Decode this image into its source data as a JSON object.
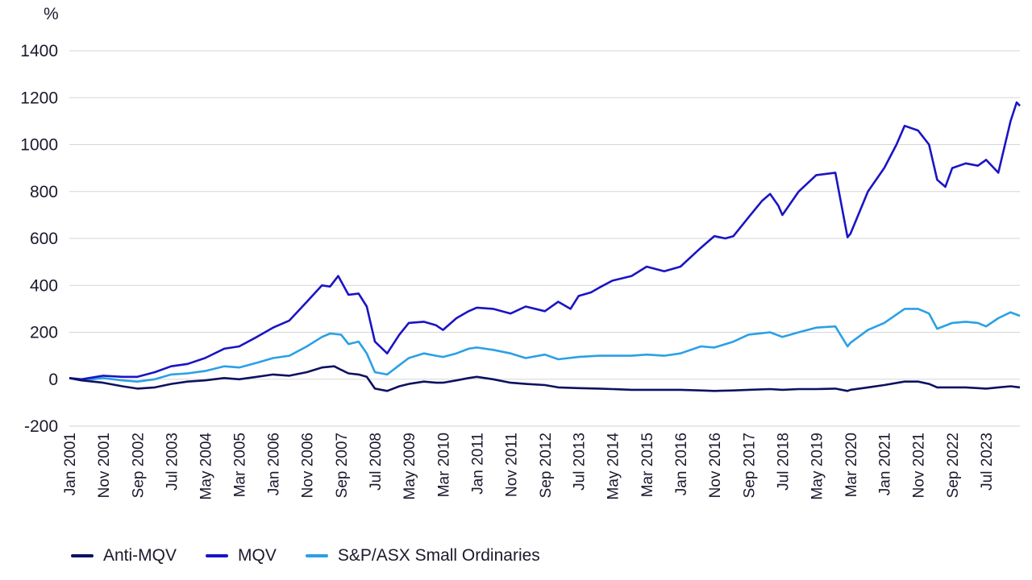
{
  "chart_data": {
    "type": "line",
    "unit_label": "%",
    "ylim": [
      -200,
      1400
    ],
    "yticks": [
      -200,
      0,
      200,
      400,
      600,
      800,
      1000,
      1200,
      1400
    ],
    "grid": true,
    "legend_position": "bottom-left",
    "x_tick_labels": [
      "Jan 2001",
      "Nov 2001",
      "Sep 2002",
      "Jul 2003",
      "May 2004",
      "Mar 2005",
      "Jan 2006",
      "Nov 2006",
      "Sep 2007",
      "Jul 2008",
      "May 2009",
      "Mar 2010",
      "Jan 2011",
      "Nov 2011",
      "Sep 2012",
      "Jul 2013",
      "May 2014",
      "Mar 2015",
      "Jan 2016",
      "Nov 2016",
      "Sep 2017",
      "Jul 2018",
      "May 2019",
      "Mar 2020",
      "Jan 2021",
      "Nov 2021",
      "Sep 2022",
      "Jul 2023"
    ],
    "x_tick_years": [
      2001.0,
      2001.83,
      2002.67,
      2003.5,
      2004.33,
      2005.17,
      2006.0,
      2006.83,
      2007.67,
      2008.5,
      2009.33,
      2010.17,
      2011.0,
      2011.83,
      2012.67,
      2013.5,
      2014.33,
      2015.17,
      2016.0,
      2016.83,
      2017.67,
      2018.5,
      2019.33,
      2020.17,
      2021.0,
      2021.83,
      2022.67,
      2023.5
    ],
    "xlim": [
      2001.0,
      2024.33
    ],
    "series": [
      {
        "name": "S&P/ASX Small Ordinaries",
        "color": "#2aa0e6",
        "points": [
          [
            2001.0,
            5
          ],
          [
            2001.3,
            -5
          ],
          [
            2001.83,
            5
          ],
          [
            2002.3,
            -5
          ],
          [
            2002.67,
            -10
          ],
          [
            2003.1,
            0
          ],
          [
            2003.5,
            20
          ],
          [
            2003.9,
            25
          ],
          [
            2004.33,
            35
          ],
          [
            2004.8,
            55
          ],
          [
            2005.17,
            50
          ],
          [
            2005.6,
            70
          ],
          [
            2006.0,
            90
          ],
          [
            2006.4,
            100
          ],
          [
            2006.83,
            140
          ],
          [
            2007.2,
            180
          ],
          [
            2007.4,
            195
          ],
          [
            2007.67,
            190
          ],
          [
            2007.85,
            150
          ],
          [
            2008.1,
            160
          ],
          [
            2008.3,
            110
          ],
          [
            2008.5,
            30
          ],
          [
            2008.8,
            20
          ],
          [
            2009.1,
            60
          ],
          [
            2009.33,
            90
          ],
          [
            2009.7,
            110
          ],
          [
            2010.0,
            100
          ],
          [
            2010.17,
            95
          ],
          [
            2010.5,
            110
          ],
          [
            2010.8,
            130
          ],
          [
            2011.0,
            135
          ],
          [
            2011.4,
            125
          ],
          [
            2011.83,
            110
          ],
          [
            2012.2,
            90
          ],
          [
            2012.67,
            105
          ],
          [
            2013.0,
            85
          ],
          [
            2013.5,
            95
          ],
          [
            2014.0,
            100
          ],
          [
            2014.33,
            100
          ],
          [
            2014.8,
            100
          ],
          [
            2015.17,
            105
          ],
          [
            2015.6,
            100
          ],
          [
            2016.0,
            110
          ],
          [
            2016.5,
            140
          ],
          [
            2016.83,
            135
          ],
          [
            2017.3,
            160
          ],
          [
            2017.67,
            190
          ],
          [
            2018.2,
            200
          ],
          [
            2018.5,
            180
          ],
          [
            2018.9,
            200
          ],
          [
            2019.33,
            220
          ],
          [
            2019.8,
            225
          ],
          [
            2020.1,
            140
          ],
          [
            2020.17,
            155
          ],
          [
            2020.6,
            210
          ],
          [
            2021.0,
            240
          ],
          [
            2021.5,
            300
          ],
          [
            2021.83,
            300
          ],
          [
            2022.1,
            280
          ],
          [
            2022.3,
            215
          ],
          [
            2022.67,
            240
          ],
          [
            2023.0,
            245
          ],
          [
            2023.3,
            240
          ],
          [
            2023.5,
            225
          ],
          [
            2023.8,
            260
          ],
          [
            2024.1,
            285
          ],
          [
            2024.33,
            270
          ]
        ]
      },
      {
        "name": "MQV",
        "color": "#1a14c4",
        "points": [
          [
            2001.0,
            5
          ],
          [
            2001.3,
            0
          ],
          [
            2001.83,
            15
          ],
          [
            2002.3,
            10
          ],
          [
            2002.67,
            10
          ],
          [
            2003.1,
            30
          ],
          [
            2003.5,
            55
          ],
          [
            2003.9,
            65
          ],
          [
            2004.33,
            90
          ],
          [
            2004.8,
            130
          ],
          [
            2005.17,
            140
          ],
          [
            2005.6,
            180
          ],
          [
            2006.0,
            220
          ],
          [
            2006.4,
            250
          ],
          [
            2006.83,
            330
          ],
          [
            2007.2,
            400
          ],
          [
            2007.4,
            395
          ],
          [
            2007.6,
            440
          ],
          [
            2007.85,
            360
          ],
          [
            2008.1,
            365
          ],
          [
            2008.3,
            310
          ],
          [
            2008.5,
            160
          ],
          [
            2008.8,
            110
          ],
          [
            2009.1,
            190
          ],
          [
            2009.33,
            240
          ],
          [
            2009.7,
            245
          ],
          [
            2010.0,
            230
          ],
          [
            2010.17,
            210
          ],
          [
            2010.5,
            260
          ],
          [
            2010.8,
            290
          ],
          [
            2011.0,
            305
          ],
          [
            2011.4,
            300
          ],
          [
            2011.83,
            280
          ],
          [
            2012.2,
            310
          ],
          [
            2012.67,
            290
          ],
          [
            2013.0,
            330
          ],
          [
            2013.3,
            300
          ],
          [
            2013.5,
            355
          ],
          [
            2013.8,
            370
          ],
          [
            2014.0,
            390
          ],
          [
            2014.33,
            420
          ],
          [
            2014.8,
            440
          ],
          [
            2015.17,
            480
          ],
          [
            2015.6,
            460
          ],
          [
            2016.0,
            480
          ],
          [
            2016.5,
            560
          ],
          [
            2016.83,
            610
          ],
          [
            2017.1,
            600
          ],
          [
            2017.3,
            610
          ],
          [
            2017.67,
            690
          ],
          [
            2018.0,
            760
          ],
          [
            2018.2,
            790
          ],
          [
            2018.4,
            740
          ],
          [
            2018.5,
            700
          ],
          [
            2018.9,
            800
          ],
          [
            2019.33,
            870
          ],
          [
            2019.8,
            880
          ],
          [
            2020.1,
            605
          ],
          [
            2020.17,
            620
          ],
          [
            2020.6,
            800
          ],
          [
            2021.0,
            900
          ],
          [
            2021.3,
            1000
          ],
          [
            2021.5,
            1080
          ],
          [
            2021.83,
            1060
          ],
          [
            2022.1,
            1000
          ],
          [
            2022.3,
            850
          ],
          [
            2022.5,
            820
          ],
          [
            2022.67,
            900
          ],
          [
            2023.0,
            920
          ],
          [
            2023.3,
            910
          ],
          [
            2023.5,
            935
          ],
          [
            2023.8,
            880
          ],
          [
            2024.1,
            1100
          ],
          [
            2024.25,
            1180
          ],
          [
            2024.33,
            1165
          ]
        ]
      },
      {
        "name": "Anti-MQV",
        "color": "#0d1160",
        "points": [
          [
            2001.0,
            5
          ],
          [
            2001.3,
            -5
          ],
          [
            2001.83,
            -15
          ],
          [
            2002.3,
            -30
          ],
          [
            2002.67,
            -40
          ],
          [
            2003.1,
            -35
          ],
          [
            2003.5,
            -20
          ],
          [
            2003.9,
            -10
          ],
          [
            2004.33,
            -5
          ],
          [
            2004.8,
            5
          ],
          [
            2005.17,
            0
          ],
          [
            2005.6,
            10
          ],
          [
            2006.0,
            20
          ],
          [
            2006.4,
            15
          ],
          [
            2006.83,
            30
          ],
          [
            2007.2,
            50
          ],
          [
            2007.5,
            55
          ],
          [
            2007.67,
            40
          ],
          [
            2007.85,
            25
          ],
          [
            2008.1,
            20
          ],
          [
            2008.3,
            10
          ],
          [
            2008.5,
            -40
          ],
          [
            2008.8,
            -50
          ],
          [
            2009.1,
            -30
          ],
          [
            2009.33,
            -20
          ],
          [
            2009.7,
            -10
          ],
          [
            2010.0,
            -15
          ],
          [
            2010.17,
            -15
          ],
          [
            2010.5,
            -5
          ],
          [
            2010.8,
            5
          ],
          [
            2011.0,
            10
          ],
          [
            2011.4,
            0
          ],
          [
            2011.83,
            -15
          ],
          [
            2012.2,
            -20
          ],
          [
            2012.67,
            -25
          ],
          [
            2013.0,
            -35
          ],
          [
            2013.5,
            -38
          ],
          [
            2014.0,
            -40
          ],
          [
            2014.33,
            -42
          ],
          [
            2014.8,
            -45
          ],
          [
            2015.17,
            -45
          ],
          [
            2015.6,
            -45
          ],
          [
            2016.0,
            -45
          ],
          [
            2016.5,
            -48
          ],
          [
            2016.83,
            -50
          ],
          [
            2017.3,
            -48
          ],
          [
            2017.67,
            -45
          ],
          [
            2018.2,
            -42
          ],
          [
            2018.5,
            -45
          ],
          [
            2018.9,
            -42
          ],
          [
            2019.33,
            -42
          ],
          [
            2019.8,
            -40
          ],
          [
            2020.1,
            -50
          ],
          [
            2020.17,
            -45
          ],
          [
            2020.6,
            -35
          ],
          [
            2021.0,
            -25
          ],
          [
            2021.5,
            -10
          ],
          [
            2021.83,
            -10
          ],
          [
            2022.1,
            -20
          ],
          [
            2022.3,
            -35
          ],
          [
            2022.67,
            -35
          ],
          [
            2023.0,
            -35
          ],
          [
            2023.3,
            -38
          ],
          [
            2023.5,
            -40
          ],
          [
            2023.8,
            -35
          ],
          [
            2024.1,
            -30
          ],
          [
            2024.33,
            -35
          ]
        ]
      }
    ],
    "legend": [
      {
        "label": "Anti-MQV",
        "color": "#0d1160"
      },
      {
        "label": "MQV",
        "color": "#1a14c4"
      },
      {
        "label": "S&P/ASX Small Ordinaries",
        "color": "#2aa0e6"
      }
    ]
  }
}
